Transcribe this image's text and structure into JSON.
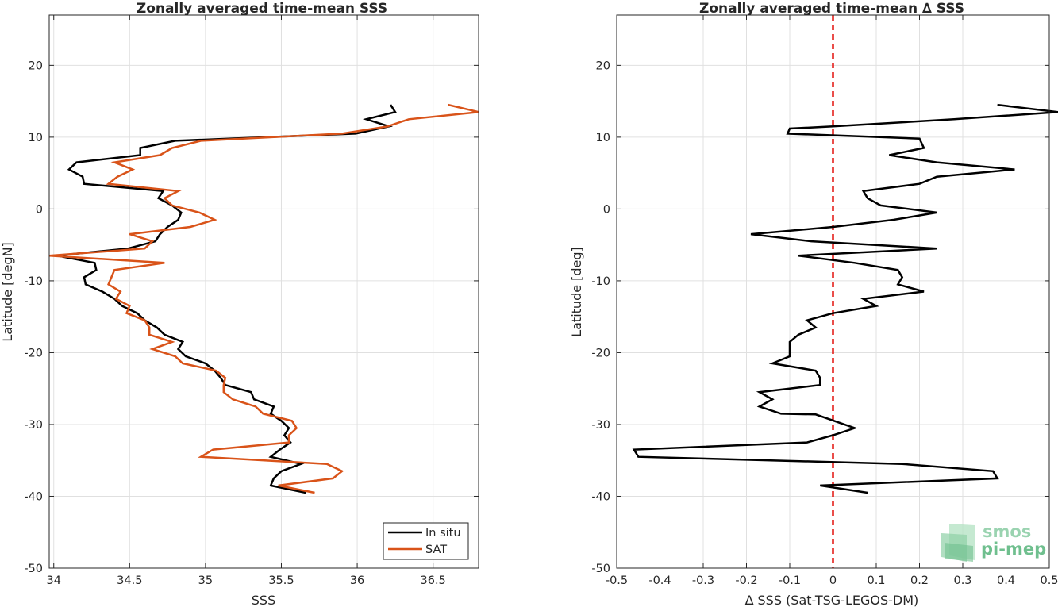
{
  "colors": {
    "insitu": "#000000",
    "sat": "#d95319",
    "zero_line": "#e3130f",
    "grid": "#e0e0e0",
    "axis": "#262626",
    "logo": "#6fbf8e"
  },
  "logo": {
    "line1": "smos",
    "line2": "pi-mep",
    "icon": "smos-pimep-logo-icon"
  },
  "chart_data": [
    {
      "type": "line",
      "title": "Zonally averaged time-mean SSS",
      "xlabel": "SSS",
      "ylabel": "Latitude [degN]",
      "xlim": [
        33.97,
        36.8
      ],
      "ylim": [
        -50,
        27
      ],
      "xticks": [
        34,
        34.5,
        35,
        35.5,
        36,
        36.5
      ],
      "xtick_labels": [
        "34",
        "34.5",
        "35",
        "35.5",
        "36",
        "36.5"
      ],
      "yticks": [
        -50,
        -40,
        -30,
        -20,
        -10,
        0,
        10,
        20
      ],
      "ytick_labels": [
        "-50",
        "-40",
        "-30",
        "-20",
        "-10",
        "0",
        "10",
        "20"
      ],
      "grid": true,
      "legend": "bottom-right",
      "series": [
        {
          "name": "In situ",
          "color": "#000000",
          "points": [
            [
              36.22,
              14.5
            ],
            [
              36.25,
              13.5
            ],
            [
              36.06,
              12.5
            ],
            [
              36.21,
              11.5
            ],
            [
              35.99,
              10.5
            ],
            [
              34.8,
              9.5
            ],
            [
              34.57,
              8.5
            ],
            [
              34.57,
              7.5
            ],
            [
              34.15,
              6.5
            ],
            [
              34.1,
              5.5
            ],
            [
              34.19,
              4.5
            ],
            [
              34.2,
              3.5
            ],
            [
              34.72,
              2.5
            ],
            [
              34.69,
              1.5
            ],
            [
              34.78,
              0.5
            ],
            [
              34.84,
              -0.5
            ],
            [
              34.82,
              -1.5
            ],
            [
              34.75,
              -2.5
            ],
            [
              34.7,
              -3.5
            ],
            [
              34.67,
              -4.5
            ],
            [
              34.49,
              -5.5
            ],
            [
              34.02,
              -6.5
            ],
            [
              34.27,
              -7.5
            ],
            [
              34.28,
              -8.5
            ],
            [
              34.2,
              -9.5
            ],
            [
              34.21,
              -10.5
            ],
            [
              34.32,
              -11.5
            ],
            [
              34.4,
              -12.5
            ],
            [
              34.45,
              -13.5
            ],
            [
              34.55,
              -14.5
            ],
            [
              34.6,
              -15.5
            ],
            [
              34.68,
              -16.5
            ],
            [
              34.73,
              -17.5
            ],
            [
              34.85,
              -18.5
            ],
            [
              34.82,
              -19.5
            ],
            [
              34.87,
              -20.5
            ],
            [
              35.0,
              -21.5
            ],
            [
              35.06,
              -22.5
            ],
            [
              35.1,
              -23.5
            ],
            [
              35.13,
              -24.5
            ],
            [
              35.3,
              -25.5
            ],
            [
              35.32,
              -26.5
            ],
            [
              35.45,
              -27.5
            ],
            [
              35.43,
              -28.5
            ],
            [
              35.5,
              -29.5
            ],
            [
              35.55,
              -30.5
            ],
            [
              35.52,
              -31.5
            ],
            [
              35.56,
              -32.5
            ],
            [
              35.49,
              -33.5
            ],
            [
              35.43,
              -34.5
            ],
            [
              35.63,
              -35.5
            ],
            [
              35.5,
              -36.5
            ],
            [
              35.45,
              -37.5
            ],
            [
              35.43,
              -38.5
            ],
            [
              35.66,
              -39.5
            ]
          ]
        },
        {
          "name": "SAT",
          "color": "#d95319",
          "points": [
            [
              36.6,
              14.5
            ],
            [
              36.8,
              13.5
            ],
            [
              36.34,
              12.5
            ],
            [
              36.2,
              11.5
            ],
            [
              35.9,
              10.5
            ],
            [
              34.97,
              9.5
            ],
            [
              34.78,
              8.5
            ],
            [
              34.7,
              7.5
            ],
            [
              34.4,
              6.5
            ],
            [
              34.52,
              5.5
            ],
            [
              34.42,
              4.5
            ],
            [
              34.36,
              3.5
            ],
            [
              34.82,
              2.5
            ],
            [
              34.73,
              1.5
            ],
            [
              34.78,
              0.5
            ],
            [
              34.96,
              -0.5
            ],
            [
              35.06,
              -1.5
            ],
            [
              34.9,
              -2.5
            ],
            [
              34.5,
              -3.5
            ],
            [
              34.65,
              -4.5
            ],
            [
              34.6,
              -5.5
            ],
            [
              33.97,
              -6.5
            ],
            [
              34.73,
              -7.5
            ],
            [
              34.4,
              -8.5
            ],
            [
              34.38,
              -9.5
            ],
            [
              34.36,
              -10.5
            ],
            [
              34.44,
              -11.5
            ],
            [
              34.41,
              -12.5
            ],
            [
              34.5,
              -13.5
            ],
            [
              34.48,
              -14.5
            ],
            [
              34.6,
              -15.5
            ],
            [
              34.63,
              -16.5
            ],
            [
              34.63,
              -17.5
            ],
            [
              34.78,
              -18.5
            ],
            [
              34.65,
              -19.5
            ],
            [
              34.8,
              -20.5
            ],
            [
              34.85,
              -21.5
            ],
            [
              35.07,
              -22.5
            ],
            [
              35.13,
              -23.5
            ],
            [
              35.12,
              -24.5
            ],
            [
              35.12,
              -25.5
            ],
            [
              35.18,
              -26.5
            ],
            [
              35.33,
              -27.5
            ],
            [
              35.38,
              -28.5
            ],
            [
              35.57,
              -29.5
            ],
            [
              35.6,
              -30.5
            ],
            [
              35.55,
              -31.5
            ],
            [
              35.55,
              -32.5
            ],
            [
              35.05,
              -33.5
            ],
            [
              34.97,
              -34.5
            ],
            [
              35.8,
              -35.5
            ],
            [
              35.9,
              -36.5
            ],
            [
              35.84,
              -37.5
            ],
            [
              35.48,
              -38.5
            ],
            [
              35.72,
              -39.5
            ]
          ]
        }
      ]
    },
    {
      "type": "line",
      "title": "Zonally averaged time-mean ∆ SSS",
      "xlabel": "∆ SSS (Sat-TSG-LEGOS-DM)",
      "ylabel": "Latitude [deg]",
      "xlim": [
        -0.5,
        0.5
      ],
      "ylim": [
        -50,
        27
      ],
      "xticks": [
        -0.5,
        -0.4,
        -0.3,
        -0.2,
        -0.1,
        0,
        0.1,
        0.2,
        0.3,
        0.4,
        0.5
      ],
      "xtick_labels": [
        "-0.5",
        "-0.4",
        "-0.3",
        "-0.2",
        "-0.1",
        "0",
        "0.1",
        "0.2",
        "0.3",
        "0.4",
        "0.5"
      ],
      "yticks": [
        -50,
        -40,
        -30,
        -20,
        -10,
        0,
        10,
        20
      ],
      "ytick_labels": [
        "-50",
        "-40",
        "-30",
        "-20",
        "-10",
        "0",
        "10",
        "20"
      ],
      "grid": true,
      "reference_line": {
        "x": 0,
        "style": "dashed",
        "color": "#e3130f"
      },
      "series": [
        {
          "name": "",
          "color": "#000000",
          "points": [
            [
              0.38,
              14.5
            ],
            [
              0.52,
              13.5
            ],
            [
              0.28,
              12.5
            ],
            [
              0.0,
              11.5
            ],
            [
              -0.1,
              11.2
            ],
            [
              -0.105,
              10.5
            ],
            [
              0.2,
              9.8
            ],
            [
              0.21,
              8.5
            ],
            [
              0.13,
              7.5
            ],
            [
              0.24,
              6.5
            ],
            [
              0.42,
              5.5
            ],
            [
              0.24,
              4.5
            ],
            [
              0.2,
              3.5
            ],
            [
              0.07,
              2.5
            ],
            [
              0.08,
              1.5
            ],
            [
              0.11,
              0.5
            ],
            [
              0.24,
              -0.5
            ],
            [
              0.14,
              -1.5
            ],
            [
              0.0,
              -2.5
            ],
            [
              -0.19,
              -3.5
            ],
            [
              -0.05,
              -4.5
            ],
            [
              0.24,
              -5.5
            ],
            [
              -0.08,
              -6.5
            ],
            [
              0.05,
              -7.5
            ],
            [
              0.15,
              -8.5
            ],
            [
              0.16,
              -9.5
            ],
            [
              0.15,
              -10.5
            ],
            [
              0.21,
              -11.5
            ],
            [
              0.07,
              -12.5
            ],
            [
              0.1,
              -13.5
            ],
            [
              0.0,
              -14.5
            ],
            [
              -0.06,
              -15.5
            ],
            [
              -0.04,
              -16.5
            ],
            [
              -0.08,
              -17.5
            ],
            [
              -0.1,
              -18.5
            ],
            [
              -0.1,
              -19.5
            ],
            [
              -0.1,
              -20.5
            ],
            [
              -0.14,
              -21.5
            ],
            [
              -0.04,
              -22.5
            ],
            [
              -0.03,
              -23.5
            ],
            [
              -0.03,
              -24.5
            ],
            [
              -0.17,
              -25.5
            ],
            [
              -0.14,
              -26.5
            ],
            [
              -0.17,
              -27.5
            ],
            [
              -0.12,
              -28.5
            ],
            [
              -0.04,
              -28.6
            ],
            [
              0.05,
              -30.5
            ],
            [
              0.0,
              -31.5
            ],
            [
              -0.06,
              -32.5
            ],
            [
              -0.46,
              -33.5
            ],
            [
              -0.45,
              -34.5
            ],
            [
              0.16,
              -35.5
            ],
            [
              0.37,
              -36.5
            ],
            [
              0.38,
              -37.5
            ],
            [
              -0.03,
              -38.5
            ],
            [
              0.08,
              -39.5
            ]
          ]
        }
      ]
    }
  ]
}
